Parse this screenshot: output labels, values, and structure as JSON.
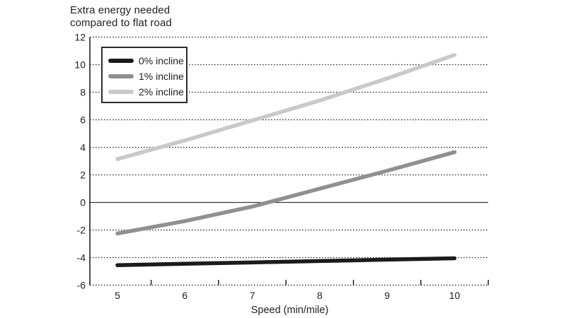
{
  "chart_data": {
    "type": "line",
    "title_lines": [
      "Extra energy needed",
      "compared to flat road"
    ],
    "xlabel": "Speed (min/mile)",
    "ylabel": "Extra energy needed compared to flat road",
    "x": [
      5,
      6,
      7,
      8,
      9,
      10
    ],
    "series": [
      {
        "name": "0% incline",
        "color": "#1b1b1b",
        "values": [
          -4.55,
          -4.45,
          -4.35,
          -4.25,
          -4.15,
          -4.05
        ]
      },
      {
        "name": "1% incline",
        "color": "#909090",
        "values": [
          -2.25,
          -1.35,
          -0.3,
          1.0,
          2.3,
          3.65
        ]
      },
      {
        "name": "2% incline",
        "color": "#c9c9c9",
        "values": [
          3.15,
          4.5,
          5.95,
          7.4,
          9.0,
          10.7
        ]
      }
    ],
    "y_ticks": [
      12,
      10,
      8,
      6,
      4,
      2,
      0,
      -2,
      -4,
      -6
    ],
    "x_tick_labels": [
      5,
      6,
      7,
      8,
      9,
      10
    ],
    "x_boundary_ticks": [
      5.5,
      6.5,
      7.5,
      8.5,
      9.5,
      10.5
    ],
    "xlim": [
      4.6,
      10.5
    ],
    "ylim": [
      -6,
      12
    ],
    "grid": "dotted horizontal lines at every 2 units, solid line at 0",
    "legend_position": "top-left",
    "axis_color": "#222222",
    "grid_color": "#2b2b2b",
    "zero_line_color": "#3a3a3a"
  }
}
